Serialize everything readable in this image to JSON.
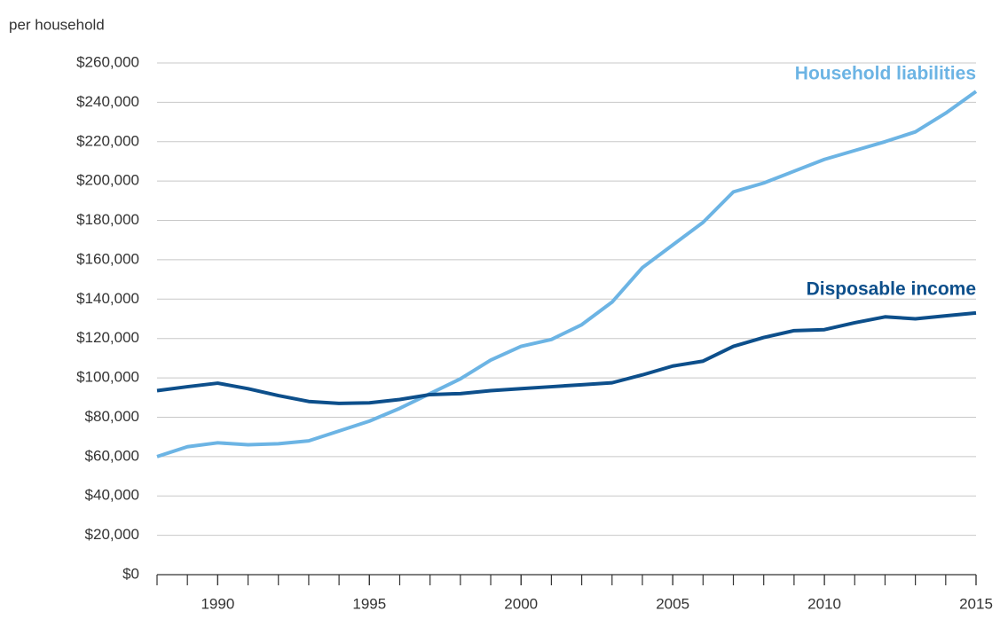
{
  "chart_data": {
    "type": "line",
    "y_axis_label": "per household",
    "x": [
      1988,
      1989,
      1990,
      1991,
      1992,
      1993,
      1994,
      1995,
      1996,
      1997,
      1998,
      1999,
      2000,
      2001,
      2002,
      2003,
      2004,
      2005,
      2006,
      2007,
      2008,
      2009,
      2010,
      2011,
      2012,
      2013,
      2014,
      2015
    ],
    "series": [
      {
        "name": "Household liabilities",
        "color": "#6cb4e4",
        "values": [
          60000,
          65000,
          67000,
          66000,
          66500,
          68000,
          73000,
          78000,
          84500,
          92000,
          99500,
          109000,
          116000,
          119500,
          127000,
          138500,
          156000,
          167500,
          179000,
          194500,
          199000,
          205000,
          211000,
          215500,
          220000,
          225000,
          234500,
          245500
        ]
      },
      {
        "name": "Disposable income",
        "color": "#0d4f8b",
        "values": [
          93500,
          95500,
          97300,
          94500,
          91000,
          88000,
          87000,
          87300,
          89000,
          91500,
          92000,
          93500,
          94500,
          95500,
          96500,
          97500,
          101500,
          106000,
          108500,
          116000,
          120500,
          124000,
          124500,
          128000,
          131000,
          130000,
          131500,
          133000
        ]
      }
    ],
    "xlim": [
      1988,
      2015
    ],
    "xticks": [
      1990,
      1995,
      2000,
      2005,
      2010,
      2015
    ],
    "xminorticks": [
      1988,
      1989,
      1990,
      1991,
      1992,
      1993,
      1994,
      1995,
      1996,
      1997,
      1998,
      1999,
      2000,
      2001,
      2002,
      2003,
      2004,
      2005,
      2006,
      2007,
      2008,
      2009,
      2010,
      2011,
      2012,
      2013,
      2014,
      2015
    ],
    "ylim": [
      0,
      260000
    ],
    "yticks": [
      {
        "value": 0,
        "label": "$0"
      },
      {
        "value": 20000,
        "label": "$20,000"
      },
      {
        "value": 40000,
        "label": "$40,000"
      },
      {
        "value": 60000,
        "label": "$60,000"
      },
      {
        "value": 80000,
        "label": "$80,000"
      },
      {
        "value": 100000,
        "label": "$100,000"
      },
      {
        "value": 120000,
        "label": "$120,000"
      },
      {
        "value": 140000,
        "label": "$140,000"
      },
      {
        "value": 160000,
        "label": "$160,000"
      },
      {
        "value": 180000,
        "label": "$180,000"
      },
      {
        "value": 200000,
        "label": "$200,000"
      },
      {
        "value": 220000,
        "label": "$220,000"
      },
      {
        "value": 240000,
        "label": "$240,000"
      },
      {
        "value": 260000,
        "label": "$260,000"
      }
    ],
    "grid": true
  }
}
